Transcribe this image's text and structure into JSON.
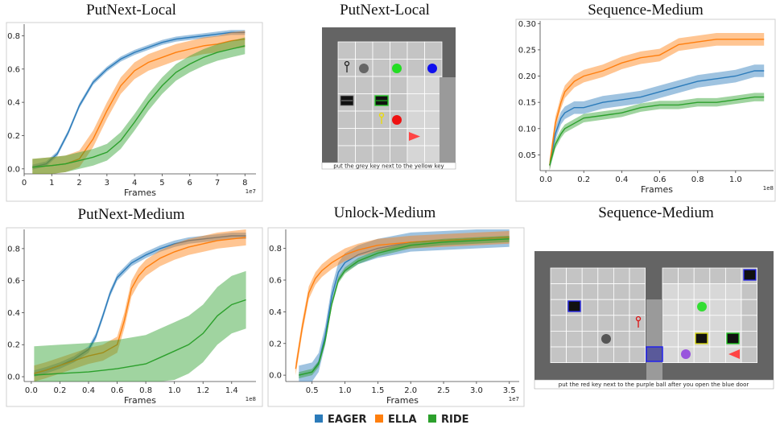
{
  "chart_data": [
    {
      "type": "line",
      "title": "PutNext-Local",
      "xlabel": "Frames",
      "x_exponent": "1e7",
      "xlim": [
        0,
        8.4
      ],
      "ylim": [
        -0.03,
        0.87
      ],
      "xticks": [
        0,
        1,
        2,
        3,
        4,
        5,
        6,
        7,
        8
      ],
      "yticks": [
        "0.0",
        "0.2",
        "0.4",
        "0.6",
        "0.8"
      ],
      "yticks_values": [
        0,
        0.2,
        0.4,
        0.6,
        0.8
      ],
      "series": [
        {
          "name": "EAGER",
          "color": "#2b7bba",
          "x": [
            0.3,
            0.8,
            1.2,
            1.6,
            2.0,
            2.5,
            3.0,
            3.5,
            4.0,
            4.5,
            5.0,
            5.5,
            6.0,
            6.5,
            7.0,
            7.5,
            8.0
          ],
          "y": [
            0.01,
            0.03,
            0.09,
            0.22,
            0.38,
            0.52,
            0.6,
            0.66,
            0.7,
            0.73,
            0.76,
            0.78,
            0.79,
            0.8,
            0.81,
            0.82,
            0.82
          ],
          "band": 0.015
        },
        {
          "name": "ELLA",
          "color": "#ff7f0e",
          "x": [
            0.3,
            1.0,
            1.5,
            2.0,
            2.5,
            3.0,
            3.5,
            4.0,
            4.5,
            5.0,
            5.5,
            6.0,
            6.5,
            7.0,
            7.5,
            8.0
          ],
          "y": [
            0.01,
            0.02,
            0.03,
            0.06,
            0.18,
            0.35,
            0.5,
            0.59,
            0.64,
            0.67,
            0.7,
            0.72,
            0.74,
            0.75,
            0.77,
            0.78
          ],
          "band": 0.05
        },
        {
          "name": "RIDE",
          "color": "#2ca02c",
          "x": [
            0.3,
            1.0,
            1.5,
            2.0,
            2.5,
            3.0,
            3.5,
            4.0,
            4.5,
            5.0,
            5.5,
            6.0,
            6.5,
            7.0,
            7.5,
            8.0
          ],
          "y": [
            0.01,
            0.02,
            0.03,
            0.05,
            0.07,
            0.1,
            0.17,
            0.28,
            0.4,
            0.5,
            0.58,
            0.63,
            0.67,
            0.7,
            0.72,
            0.74
          ],
          "band": 0.05
        }
      ]
    },
    {
      "type": "line",
      "title": "Sequence-Medium",
      "xlabel": "Frames",
      "x_exponent": "1e8",
      "xlim": [
        -0.03,
        1.2
      ],
      "ylim": [
        0.02,
        0.305
      ],
      "xticks": [
        0.0,
        0.2,
        0.4,
        0.6,
        0.8,
        1.0
      ],
      "xticks_labels": [
        "0.0",
        "0.2",
        "0.4",
        "0.6",
        "0.8",
        "1.0"
      ],
      "yticks": [
        "0.05",
        "0.10",
        "0.15",
        "0.20",
        "0.25",
        "0.30"
      ],
      "yticks_values": [
        0.05,
        0.1,
        0.15,
        0.2,
        0.25,
        0.3
      ],
      "series": [
        {
          "name": "EAGER",
          "color": "#2b7bba",
          "x": [
            0.02,
            0.05,
            0.08,
            0.1,
            0.15,
            0.2,
            0.3,
            0.4,
            0.5,
            0.6,
            0.7,
            0.8,
            0.9,
            1.0,
            1.1,
            1.15
          ],
          "y": [
            0.03,
            0.09,
            0.12,
            0.13,
            0.14,
            0.14,
            0.15,
            0.155,
            0.16,
            0.17,
            0.18,
            0.19,
            0.195,
            0.2,
            0.21,
            0.21
          ],
          "band": 0.012
        },
        {
          "name": "ELLA",
          "color": "#ff7f0e",
          "x": [
            0.02,
            0.05,
            0.08,
            0.1,
            0.15,
            0.2,
            0.3,
            0.4,
            0.5,
            0.6,
            0.7,
            0.8,
            0.9,
            1.0,
            1.1,
            1.15
          ],
          "y": [
            0.03,
            0.11,
            0.15,
            0.17,
            0.19,
            0.2,
            0.21,
            0.225,
            0.235,
            0.24,
            0.26,
            0.265,
            0.27,
            0.27,
            0.27,
            0.27
          ],
          "band": 0.012
        },
        {
          "name": "RIDE",
          "color": "#2ca02c",
          "x": [
            0.02,
            0.05,
            0.08,
            0.1,
            0.15,
            0.2,
            0.3,
            0.4,
            0.5,
            0.6,
            0.7,
            0.8,
            0.9,
            1.0,
            1.1,
            1.15
          ],
          "y": [
            0.03,
            0.07,
            0.09,
            0.1,
            0.11,
            0.12,
            0.125,
            0.13,
            0.14,
            0.145,
            0.145,
            0.15,
            0.15,
            0.155,
            0.16,
            0.16
          ],
          "band": 0.008
        }
      ]
    },
    {
      "type": "line",
      "title": "PutNext-Medium",
      "xlabel": "Frames",
      "x_exponent": "1e8",
      "xlim": [
        -0.05,
        1.57
      ],
      "ylim": [
        -0.03,
        0.92
      ],
      "xticks": [
        0.0,
        0.2,
        0.4,
        0.6,
        0.8,
        1.0,
        1.2,
        1.4
      ],
      "xticks_labels": [
        "0.0",
        "0.2",
        "0.4",
        "0.6",
        "0.8",
        "1.0",
        "1.2",
        "1.4"
      ],
      "yticks": [
        "0.0",
        "0.2",
        "0.4",
        "0.6",
        "0.8"
      ],
      "yticks_values": [
        0,
        0.2,
        0.4,
        0.6,
        0.8
      ],
      "series": [
        {
          "name": "EAGER",
          "color": "#2b7bba",
          "x": [
            0.02,
            0.1,
            0.2,
            0.3,
            0.4,
            0.45,
            0.5,
            0.55,
            0.6,
            0.7,
            0.8,
            0.9,
            1.0,
            1.1,
            1.2,
            1.3,
            1.4,
            1.5
          ],
          "y": [
            0.02,
            0.04,
            0.07,
            0.11,
            0.17,
            0.25,
            0.38,
            0.52,
            0.62,
            0.71,
            0.76,
            0.8,
            0.83,
            0.85,
            0.86,
            0.87,
            0.88,
            0.88
          ],
          "band": 0.02
        },
        {
          "name": "ELLA",
          "color": "#ff7f0e",
          "x": [
            0.02,
            0.1,
            0.2,
            0.3,
            0.4,
            0.5,
            0.6,
            0.65,
            0.7,
            0.75,
            0.8,
            0.9,
            1.0,
            1.1,
            1.2,
            1.3,
            1.4,
            1.5
          ],
          "y": [
            0.02,
            0.04,
            0.07,
            0.1,
            0.13,
            0.15,
            0.2,
            0.35,
            0.55,
            0.63,
            0.68,
            0.74,
            0.78,
            0.81,
            0.83,
            0.85,
            0.86,
            0.87
          ],
          "band": 0.05
        },
        {
          "name": "RIDE",
          "color": "#2ca02c",
          "x": [
            0.02,
            0.2,
            0.4,
            0.6,
            0.8,
            0.9,
            1.0,
            1.1,
            1.2,
            1.3,
            1.4,
            1.5
          ],
          "y": [
            0.01,
            0.02,
            0.03,
            0.05,
            0.08,
            0.12,
            0.16,
            0.2,
            0.27,
            0.38,
            0.45,
            0.48
          ],
          "band": 0.18
        }
      ]
    },
    {
      "type": "line",
      "title": "Unlock-Medium",
      "xlabel": "Frames",
      "x_exponent": "1e7",
      "xlim": [
        0.1,
        3.65
      ],
      "ylim": [
        -0.04,
        0.92
      ],
      "xticks": [
        0.5,
        1.0,
        1.5,
        2.0,
        2.5,
        3.0,
        3.5
      ],
      "xticks_labels": [
        "0.5",
        "1.0",
        "1.5",
        "2.0",
        "2.5",
        "3.0",
        "3.5"
      ],
      "yticks": [
        "0.0",
        "0.2",
        "0.4",
        "0.6",
        "0.8"
      ],
      "yticks_values": [
        0,
        0.2,
        0.4,
        0.6,
        0.8
      ],
      "series": [
        {
          "name": "EAGER",
          "color": "#2b7bba",
          "x": [
            0.3,
            0.5,
            0.6,
            0.7,
            0.8,
            0.9,
            1.0,
            1.2,
            1.5,
            2.0,
            2.5,
            3.0,
            3.5
          ],
          "y": [
            0.0,
            0.02,
            0.08,
            0.25,
            0.5,
            0.65,
            0.71,
            0.76,
            0.8,
            0.84,
            0.85,
            0.86,
            0.87
          ],
          "band": 0.06
        },
        {
          "name": "ELLA",
          "color": "#ff7f0e",
          "x": [
            0.25,
            0.35,
            0.45,
            0.55,
            0.65,
            0.8,
            1.0,
            1.2,
            1.5,
            2.0,
            2.5,
            3.0,
            3.5
          ],
          "y": [
            0.04,
            0.3,
            0.52,
            0.61,
            0.66,
            0.71,
            0.76,
            0.79,
            0.82,
            0.84,
            0.85,
            0.86,
            0.87
          ],
          "band": 0.04
        },
        {
          "name": "RIDE",
          "color": "#2ca02c",
          "x": [
            0.3,
            0.5,
            0.6,
            0.7,
            0.8,
            0.9,
            1.0,
            1.2,
            1.5,
            2.0,
            2.5,
            3.0,
            3.5
          ],
          "y": [
            0.0,
            0.02,
            0.07,
            0.22,
            0.45,
            0.6,
            0.66,
            0.72,
            0.77,
            0.82,
            0.84,
            0.85,
            0.86
          ],
          "band": 0.02
        }
      ]
    }
  ],
  "envs": [
    {
      "title": "PutNext-Local",
      "caption": "put the grey key next to the yellow key"
    },
    {
      "title": "Sequence-Medium",
      "caption": "put the red key next to the purple ball after you open the blue door"
    }
  ],
  "legend": [
    {
      "label": "EAGER",
      "color": "#2b7bba"
    },
    {
      "label": "ELLA",
      "color": "#ff7f0e"
    },
    {
      "label": "RIDE",
      "color": "#2ca02c"
    }
  ]
}
